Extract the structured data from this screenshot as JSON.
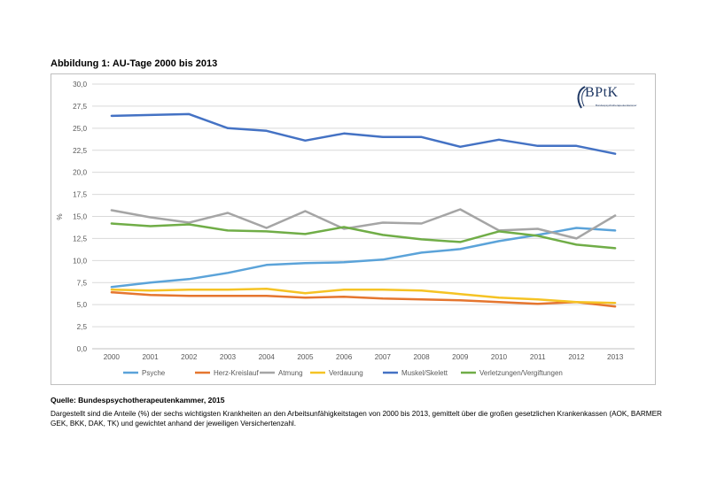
{
  "figure_title": "Abbildung 1: AU-Tage 2000 bis 2013",
  "logo_text": "BPtK",
  "logo_subtext": "Bundespsychotherapeutenkammer",
  "source_text": "Quelle: Bundespsychotherapeutenkammer, 2015",
  "description_text": "Dargestellt sind die Anteile (%) der sechs wichtigsten Krankheiten an den Arbeitsunfähigkeitstagen von 2000 bis 2013, gemittelt über die großen gesetzlichen Krankenkassen (AOK, BARMER GEK, BKK, DAK, TK) und gewichtet anhand der jeweiligen Versichertenzahl.",
  "chart_data": {
    "type": "line",
    "title": "",
    "xlabel": "",
    "ylabel": "%",
    "ylim": [
      0,
      30
    ],
    "yticks": [
      "0,0",
      "2,5",
      "5,0",
      "7,5",
      "10,0",
      "12,5",
      "15,0",
      "17,5",
      "20,0",
      "22,5",
      "25,0",
      "27,5",
      "30,0"
    ],
    "categories": [
      "2000",
      "2001",
      "2002",
      "2003",
      "2004",
      "2005",
      "2006",
      "2007",
      "2008",
      "2009",
      "2010",
      "2011",
      "2012",
      "2013"
    ],
    "grid": true,
    "legend_position": "bottom",
    "series": [
      {
        "name": "Psyche",
        "color": "#5ba3d9",
        "values": [
          7.0,
          7.5,
          7.9,
          8.6,
          9.5,
          9.7,
          9.8,
          10.1,
          10.9,
          11.3,
          12.2,
          12.9,
          13.7,
          13.4
        ]
      },
      {
        "name": "Herz-Kreislauf",
        "color": "#e5762f",
        "values": [
          6.4,
          6.1,
          6.0,
          6.0,
          6.0,
          5.8,
          5.9,
          5.7,
          5.6,
          5.5,
          5.3,
          5.1,
          5.3,
          4.8
        ]
      },
      {
        "name": "Atmung",
        "color": "#a5a5a5",
        "values": [
          15.7,
          14.9,
          14.3,
          15.4,
          13.7,
          15.6,
          13.6,
          14.3,
          14.2,
          15.8,
          13.4,
          13.6,
          12.5,
          15.1
        ]
      },
      {
        "name": "Verdauung",
        "color": "#f5c324",
        "values": [
          6.7,
          6.6,
          6.7,
          6.7,
          6.8,
          6.3,
          6.7,
          6.7,
          6.6,
          6.2,
          5.8,
          5.6,
          5.3,
          5.2
        ]
      },
      {
        "name": "Muskel/Skelett",
        "color": "#4472c4",
        "values": [
          26.4,
          26.5,
          26.6,
          25.0,
          24.7,
          23.6,
          24.4,
          24.0,
          24.0,
          22.9,
          23.7,
          23.0,
          23.0,
          22.1
        ]
      },
      {
        "name": "Verletzungen/Vergiftungen",
        "color": "#70ad47",
        "values": [
          14.2,
          13.9,
          14.1,
          13.4,
          13.3,
          13.0,
          13.8,
          12.9,
          12.4,
          12.1,
          13.3,
          12.8,
          11.8,
          11.4
        ]
      }
    ]
  }
}
